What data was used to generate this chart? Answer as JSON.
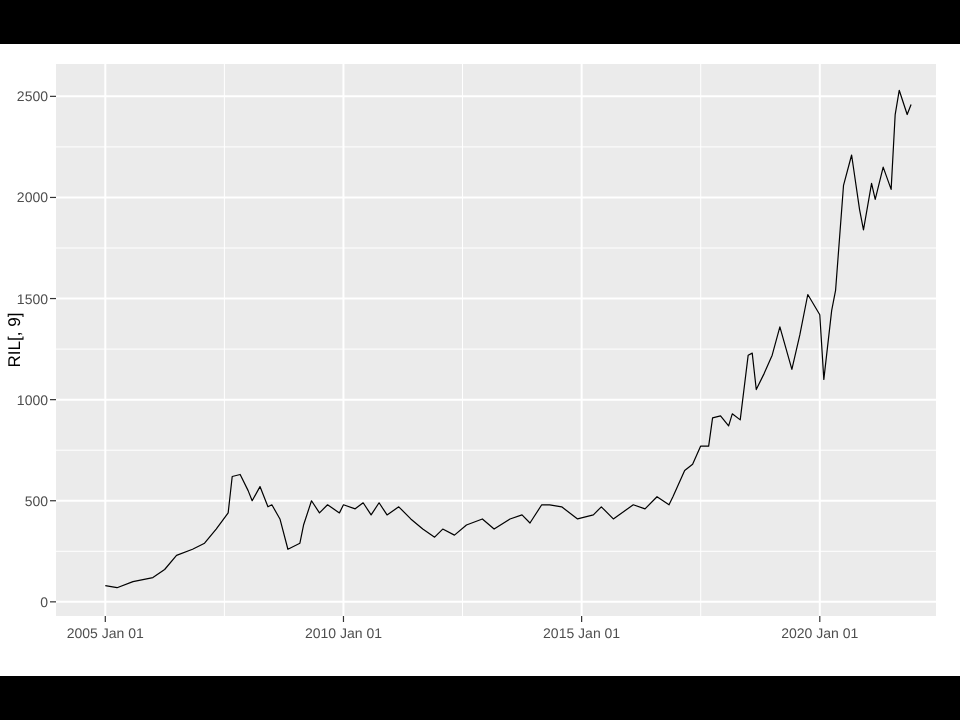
{
  "chart_data": {
    "type": "line",
    "ylabel": "RIL[, 9]",
    "xlim": [
      "2003-12-20",
      "2022-06-10"
    ],
    "ylim": [
      -70,
      2660
    ],
    "xticks": [
      {
        "value": "2005-01-01",
        "label": "2005 Jan 01"
      },
      {
        "value": "2010-01-01",
        "label": "2010 Jan 01"
      },
      {
        "value": "2015-01-01",
        "label": "2015 Jan 01"
      },
      {
        "value": "2020-01-01",
        "label": "2020 Jan 01"
      }
    ],
    "yticks": [
      0,
      500,
      1000,
      1500,
      2000,
      2500
    ],
    "grid": true,
    "line_style": "solid",
    "marker": "none",
    "series": [
      {
        "color": "#000000",
        "x": [
          "2005-01",
          "2005-04",
          "2005-08",
          "2006-01",
          "2006-04",
          "2006-07",
          "2006-11",
          "2007-02",
          "2007-05",
          "2007-08",
          "2007-09",
          "2007-11",
          "2008-01",
          "2008-02",
          "2008-04",
          "2008-06",
          "2008-07",
          "2008-09",
          "2008-11",
          "2009-02",
          "2009-03",
          "2009-05",
          "2009-07",
          "2009-09",
          "2009-12",
          "2010-01",
          "2010-04",
          "2010-06",
          "2010-08",
          "2010-10",
          "2010-12",
          "2011-03",
          "2011-06",
          "2011-09",
          "2011-12",
          "2012-02",
          "2012-05",
          "2012-08",
          "2012-12",
          "2013-03",
          "2013-07",
          "2013-10",
          "2013-12",
          "2014-03",
          "2014-05",
          "2014-08",
          "2014-12",
          "2015-04",
          "2015-06",
          "2015-09",
          "2016-02",
          "2016-05",
          "2016-08",
          "2016-11",
          "2016-12",
          "2017-03",
          "2017-05",
          "2017-07",
          "2017-09",
          "2017-10",
          "2017-12",
          "2018-02",
          "2018-03",
          "2018-05",
          "2018-07",
          "2018-08",
          "2018-09",
          "2018-11",
          "2019-01",
          "2019-03",
          "2019-06",
          "2019-08",
          "2019-10",
          "2020-01",
          "2020-02",
          "2020-04",
          "2020-05",
          "2020-07",
          "2020-09",
          "2020-11",
          "2020-12",
          "2021-02",
          "2021-03",
          "2021-05",
          "2021-07",
          "2021-08",
          "2021-09",
          "2021-11",
          "2021-12"
        ],
        "values": [
          80,
          70,
          100,
          120,
          160,
          230,
          260,
          290,
          360,
          440,
          620,
          630,
          550,
          500,
          570,
          470,
          480,
          410,
          260,
          290,
          380,
          500,
          440,
          480,
          440,
          480,
          460,
          490,
          430,
          490,
          430,
          470,
          410,
          360,
          320,
          360,
          330,
          380,
          410,
          360,
          410,
          430,
          390,
          480,
          480,
          470,
          410,
          430,
          470,
          410,
          480,
          460,
          520,
          480,
          520,
          650,
          680,
          770,
          770,
          910,
          920,
          870,
          930,
          900,
          1220,
          1230,
          1050,
          1130,
          1220,
          1360,
          1150,
          1320,
          1520,
          1420,
          1100,
          1440,
          1540,
          2060,
          2210,
          1940,
          1840,
          2070,
          1990,
          2150,
          2040,
          2410,
          2530,
          2410,
          2460
        ]
      }
    ]
  }
}
